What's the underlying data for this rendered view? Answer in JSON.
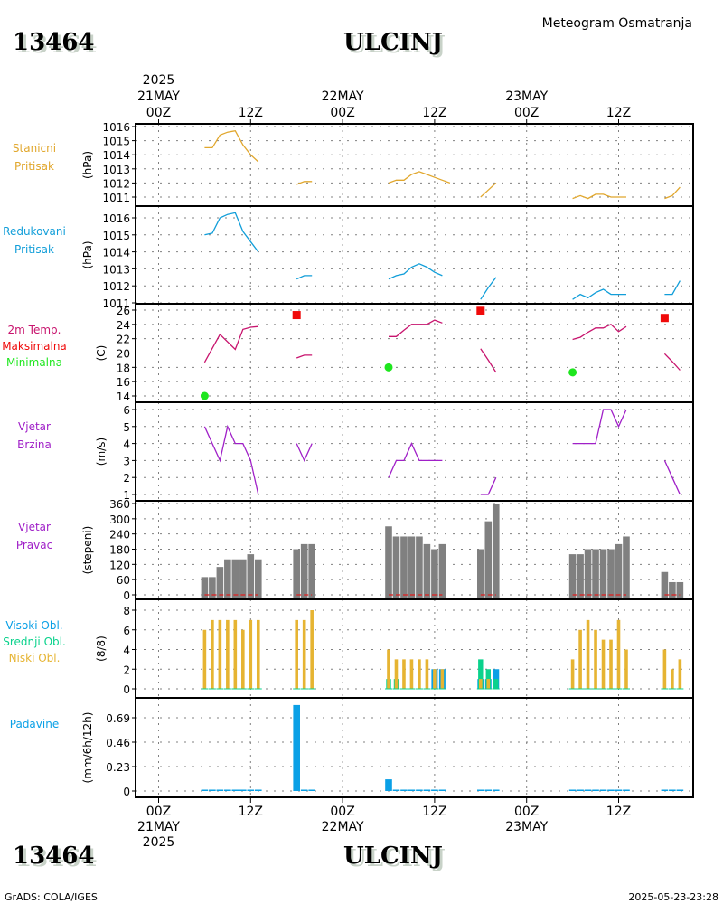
{
  "header": {
    "station_id": "13464",
    "station_name": "ULCINJ",
    "subtitle": "Meteogram Osmatranja"
  },
  "footer": {
    "credit": "GrADS: COLA/IGES",
    "timestamp": "2025-05-23-23:28"
  },
  "time_axis": {
    "top_labels": [
      {
        "hour": 0,
        "lines": [
          "2025",
          "21MAY",
          "00Z"
        ]
      },
      {
        "hour": 12,
        "lines": [
          "12Z"
        ]
      },
      {
        "hour": 24,
        "lines": [
          "22MAY",
          "00Z"
        ]
      },
      {
        "hour": 36,
        "lines": [
          "12Z"
        ]
      },
      {
        "hour": 48,
        "lines": [
          "23MAY",
          "00Z"
        ]
      },
      {
        "hour": 60,
        "lines": [
          "12Z"
        ]
      }
    ],
    "bottom_labels": [
      {
        "hour": 0,
        "lines": [
          "00Z",
          "21MAY",
          "2025"
        ]
      },
      {
        "hour": 12,
        "lines": [
          "12Z"
        ]
      },
      {
        "hour": 24,
        "lines": [
          "00Z",
          "22MAY"
        ]
      },
      {
        "hour": 36,
        "lines": [
          "12Z"
        ]
      },
      {
        "hour": 48,
        "lines": [
          "00Z",
          "23MAY"
        ]
      },
      {
        "hour": 60,
        "lines": [
          "12Z"
        ]
      }
    ],
    "xlim_hours": [
      -3,
      70
    ],
    "unit": "hours since 2025-05-21 00Z"
  },
  "colors": {
    "station_pressure": "#e1a72d",
    "reduced_pressure": "#119ed9",
    "temperature": "#c8146e",
    "tmax": "#f00a0a",
    "tmin": "#1ee61e",
    "wind_speed": "#a020c8",
    "wind_dir": "#808080",
    "wind_dir_base": "#e11e1e",
    "high_cloud": "#0aa0e6",
    "mid_cloud": "#0ad28c",
    "low_cloud": "#e6b432",
    "precip": "#0aa0e6",
    "grid": "#808080"
  },
  "chart_data": [
    {
      "type": "line",
      "id": "station_pressure",
      "labels": [
        "Stanicni",
        "Pritisak"
      ],
      "ylabel": "(hPa)",
      "ylim": [
        1010.7,
        1016.3
      ],
      "yticks": [
        1011,
        1012,
        1013,
        1014,
        1015,
        1016
      ],
      "grid": true,
      "segments": [
        [
          [
            6,
            1014.5
          ],
          [
            7,
            1014.5
          ],
          [
            8,
            1015.4
          ],
          [
            9,
            1015.6
          ],
          [
            10,
            1015.7
          ],
          [
            11,
            1014.7
          ],
          [
            12,
            1014.0
          ],
          [
            13,
            1013.5
          ]
        ],
        [
          [
            18,
            1011.9
          ],
          [
            19,
            1012.1
          ],
          [
            20,
            1012.1
          ]
        ],
        [
          [
            30,
            1012.0
          ],
          [
            31,
            1012.2
          ],
          [
            32,
            1012.2
          ],
          [
            33,
            1012.6
          ],
          [
            34,
            1012.8
          ],
          [
            35,
            1012.6
          ],
          [
            36,
            1012.4
          ],
          [
            37,
            1012.2
          ],
          [
            38,
            1012.0
          ]
        ],
        [
          [
            42,
            1011.0
          ],
          [
            43,
            1011.5
          ],
          [
            44,
            1012.0
          ]
        ],
        [
          [
            54,
            1010.9
          ],
          [
            55,
            1011.1
          ],
          [
            56,
            1010.9
          ],
          [
            57,
            1011.2
          ],
          [
            58,
            1011.2
          ],
          [
            59,
            1011.0
          ],
          [
            60,
            1011.0
          ],
          [
            61,
            1011.0
          ]
        ],
        [
          [
            66,
            1010.9
          ],
          [
            67,
            1011.1
          ],
          [
            68,
            1011.7
          ]
        ]
      ]
    },
    {
      "type": "line",
      "id": "reduced_pressure",
      "labels": [
        "Redukovani",
        "Pritisak"
      ],
      "ylabel": "(hPa)",
      "ylim": [
        1011,
        1016.6
      ],
      "yticks": [
        1011,
        1012,
        1013,
        1014,
        1015,
        1016
      ],
      "grid": true,
      "segments": [
        [
          [
            6,
            1015.0
          ],
          [
            7,
            1015.1
          ],
          [
            8,
            1016.0
          ],
          [
            9,
            1016.2
          ],
          [
            10,
            1016.3
          ],
          [
            11,
            1015.2
          ],
          [
            12,
            1014.6
          ],
          [
            13,
            1014.0
          ]
        ],
        [
          [
            18,
            1012.4
          ],
          [
            19,
            1012.6
          ],
          [
            20,
            1012.6
          ]
        ],
        [
          [
            30,
            1012.4
          ],
          [
            31,
            1012.6
          ],
          [
            32,
            1012.7
          ],
          [
            33,
            1013.1
          ],
          [
            34,
            1013.3
          ],
          [
            35,
            1013.1
          ],
          [
            36,
            1012.8
          ],
          [
            37,
            1012.6
          ]
        ],
        [
          [
            42,
            1011.2
          ],
          [
            43,
            1011.9
          ],
          [
            44,
            1012.5
          ]
        ],
        [
          [
            54,
            1011.2
          ],
          [
            55,
            1011.5
          ],
          [
            56,
            1011.3
          ],
          [
            57,
            1011.6
          ],
          [
            58,
            1011.8
          ],
          [
            59,
            1011.5
          ],
          [
            60,
            1011.5
          ],
          [
            61,
            1011.5
          ]
        ],
        [
          [
            66,
            1011.5
          ],
          [
            67,
            1011.5
          ],
          [
            68,
            1012.3
          ]
        ]
      ]
    },
    {
      "type": "line",
      "id": "temperature",
      "labels": [
        "2m Temp.",
        "Maksimalna",
        "Minimalna"
      ],
      "ylabel": "(C)",
      "ylim": [
        13,
        26.3
      ],
      "yticks": [
        14,
        16,
        18,
        20,
        22,
        24,
        26
      ],
      "grid": true,
      "segments": [
        [
          [
            6,
            18.7
          ],
          [
            8,
            22.6
          ],
          [
            10,
            20.5
          ],
          [
            11,
            23.3
          ],
          [
            12,
            23.6
          ],
          [
            13,
            23.7
          ]
        ],
        [
          [
            18,
            19.3
          ],
          [
            19,
            19.7
          ],
          [
            20,
            19.7
          ]
        ],
        [
          [
            30,
            22.3
          ],
          [
            31,
            22.3
          ],
          [
            32,
            23.2
          ],
          [
            33,
            24.0
          ],
          [
            34,
            24.0
          ],
          [
            35,
            24.0
          ],
          [
            36,
            24.6
          ],
          [
            37,
            24.2
          ]
        ],
        [
          [
            42,
            20.6
          ],
          [
            43,
            19.0
          ],
          [
            44,
            17.3
          ]
        ],
        [
          [
            54,
            21.9
          ],
          [
            55,
            22.2
          ],
          [
            56,
            22.9
          ],
          [
            57,
            23.5
          ],
          [
            58,
            23.5
          ],
          [
            59,
            24.0
          ],
          [
            60,
            23.0
          ],
          [
            61,
            23.7
          ]
        ],
        [
          [
            66,
            19.9
          ],
          [
            67,
            18.8
          ],
          [
            68,
            17.6
          ]
        ]
      ],
      "tmax": [
        [
          18,
          25.3
        ],
        [
          42,
          25.9
        ],
        [
          66,
          24.9
        ]
      ],
      "tmin": [
        [
          6,
          14.0
        ],
        [
          30,
          18.0
        ],
        [
          54,
          17.3
        ]
      ]
    },
    {
      "type": "line",
      "id": "wind_speed",
      "labels": [
        "Vjetar",
        "Brzina"
      ],
      "ylabel": "(m/s)",
      "ylim": [
        0.6,
        6.3
      ],
      "yticks": [
        1,
        2,
        3,
        4,
        5,
        6
      ],
      "grid": true,
      "segments": [
        [
          [
            6,
            5
          ],
          [
            7,
            4
          ],
          [
            8,
            3
          ],
          [
            9,
            5
          ],
          [
            10,
            4
          ],
          [
            11,
            4
          ],
          [
            12,
            3
          ],
          [
            13,
            1
          ]
        ],
        [
          [
            18,
            4
          ],
          [
            19,
            3
          ],
          [
            20,
            4
          ]
        ],
        [
          [
            30,
            2
          ],
          [
            31,
            3
          ],
          [
            32,
            3
          ],
          [
            33,
            4
          ],
          [
            34,
            3
          ],
          [
            35,
            3
          ],
          [
            36,
            3
          ],
          [
            37,
            3
          ]
        ],
        [
          [
            42,
            1
          ],
          [
            43,
            1
          ],
          [
            44,
            2
          ]
        ],
        [
          [
            54,
            4
          ],
          [
            55,
            4
          ],
          [
            56,
            4
          ],
          [
            57,
            4
          ],
          [
            58,
            6
          ],
          [
            59,
            6
          ],
          [
            60,
            5
          ],
          [
            61,
            6
          ]
        ],
        [
          [
            66,
            3
          ],
          [
            67,
            2
          ],
          [
            68,
            1
          ]
        ]
      ]
    },
    {
      "type": "bar",
      "id": "wind_direction",
      "labels": [
        "Vjetar",
        "Pravac"
      ],
      "ylabel": "(stepeni)",
      "ylim": [
        -15,
        360
      ],
      "yticks": [
        0,
        60,
        120,
        180,
        240,
        300,
        360
      ],
      "grid": true,
      "x": [
        6,
        7,
        8,
        9,
        10,
        11,
        12,
        13,
        18,
        19,
        20,
        30,
        31,
        32,
        33,
        34,
        35,
        36,
        37,
        42,
        43,
        44,
        54,
        55,
        56,
        57,
        58,
        59,
        60,
        61,
        66,
        67,
        68
      ],
      "values": [
        70,
        70,
        110,
        140,
        140,
        140,
        160,
        140,
        180,
        200,
        200,
        270,
        230,
        230,
        230,
        230,
        200,
        180,
        200,
        180,
        290,
        360,
        160,
        160,
        180,
        180,
        180,
        180,
        200,
        230,
        90,
        50,
        50
      ]
    },
    {
      "type": "bar",
      "id": "cloud_cover",
      "labels": [
        "Visoki Obl.",
        "Srednji Obl.",
        "Niski Obl."
      ],
      "ylabel": "(8/8)",
      "ylim": [
        -0.5,
        8.3
      ],
      "yticks": [
        0,
        2,
        4,
        6,
        8
      ],
      "grid": true,
      "x": [
        6,
        7,
        8,
        9,
        10,
        11,
        12,
        13,
        18,
        19,
        20,
        30,
        31,
        32,
        33,
        34,
        35,
        36,
        37,
        42,
        43,
        44,
        54,
        55,
        56,
        57,
        58,
        59,
        60,
        61,
        66,
        67,
        68
      ],
      "series": [
        {
          "name": "Visoki Obl.",
          "values": [
            0,
            0,
            0,
            0,
            0,
            0,
            0,
            0,
            0,
            0,
            0,
            0,
            0,
            0,
            0,
            0,
            0,
            2,
            2,
            1,
            1,
            2,
            0,
            0,
            0,
            0,
            0,
            0,
            0,
            0,
            0,
            0,
            0
          ]
        },
        {
          "name": "Srednji Obl.",
          "values": [
            0,
            0,
            0,
            0,
            0,
            0,
            0,
            0,
            0,
            0,
            0,
            1,
            1,
            0,
            0,
            0,
            0,
            0,
            0,
            3,
            2,
            1,
            0,
            0,
            0,
            0,
            0,
            0,
            0,
            0,
            0,
            0,
            0
          ]
        },
        {
          "name": "Niski Obl.",
          "values": [
            6,
            7,
            7,
            7,
            7,
            6,
            7,
            7,
            7,
            7,
            8,
            4,
            3,
            3,
            3,
            3,
            3,
            2,
            2,
            1,
            1,
            0,
            3,
            6,
            7,
            6,
            5,
            5,
            7,
            4,
            4,
            2,
            3
          ]
        }
      ]
    },
    {
      "type": "bar",
      "id": "precipitation",
      "labels": [
        "Padavine"
      ],
      "ylabel": "(mm/6h/12h)",
      "ylim": [
        -0.05,
        0.82
      ],
      "yticks": [
        0,
        0.23,
        0.46,
        0.69
      ],
      "ytick_labels": [
        "0",
        "0.23",
        "0.46",
        "0.69"
      ],
      "grid": true,
      "x": [
        6,
        7,
        8,
        9,
        10,
        11,
        12,
        13,
        18,
        19,
        20,
        30,
        31,
        32,
        33,
        34,
        35,
        36,
        37,
        42,
        43,
        44,
        54,
        55,
        56,
        57,
        58,
        59,
        60,
        61,
        66,
        67,
        68
      ],
      "values": [
        0,
        0,
        0,
        0,
        0,
        0,
        0,
        0,
        0.81,
        0,
        0,
        0.11,
        0,
        0,
        0,
        0,
        0,
        0,
        0,
        0,
        0,
        0,
        0,
        0,
        0,
        0,
        0,
        0,
        0,
        0,
        0,
        0,
        0
      ]
    }
  ]
}
